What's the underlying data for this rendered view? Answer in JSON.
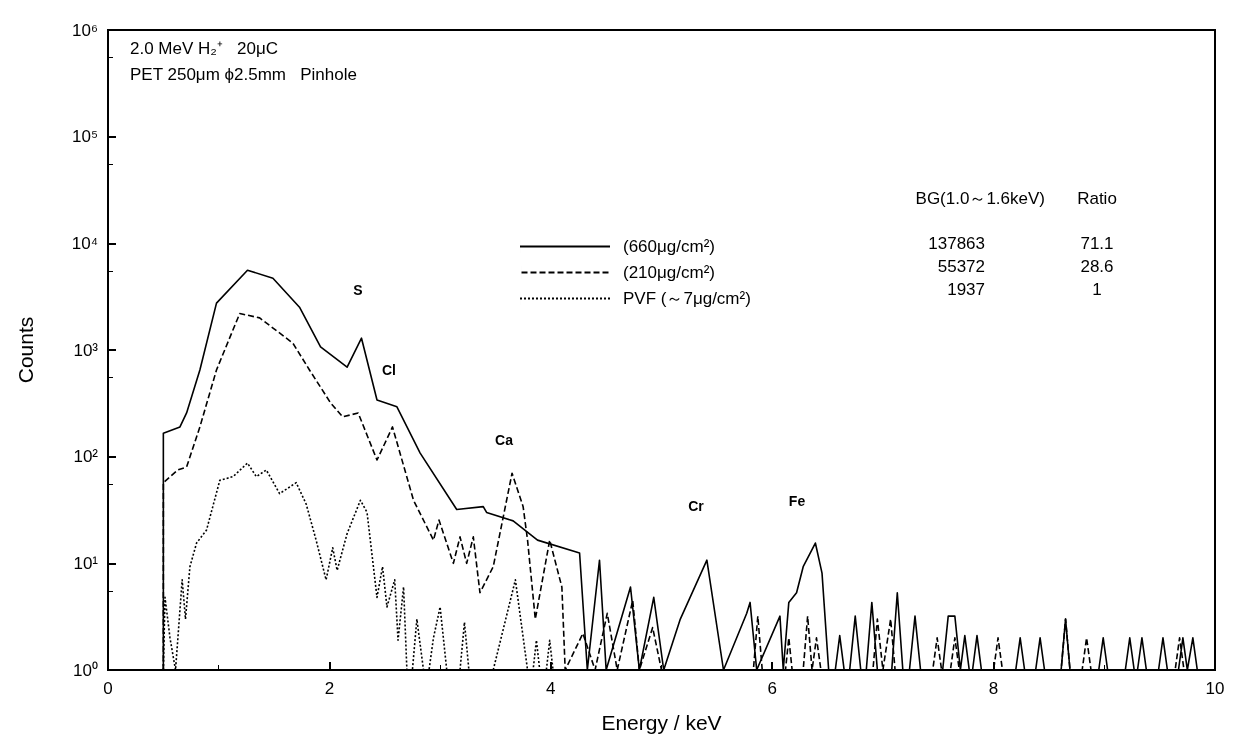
{
  "chart_data": {
    "type": "line",
    "xlabel": "Energy / keV",
    "ylabel": "Counts",
    "xlim": [
      0,
      10
    ],
    "xticks": [
      0,
      2,
      4,
      6,
      8,
      10
    ],
    "ylim": [
      1,
      1000000
    ],
    "log": "y",
    "yticks": [
      {
        "value": 1,
        "label": "10⁰"
      },
      {
        "value": 10,
        "label": "10¹"
      },
      {
        "value": 100,
        "label": "10²"
      },
      {
        "value": 1000,
        "label": "10³"
      },
      {
        "value": 10000,
        "label": "10⁴"
      },
      {
        "value": 100000,
        "label": "10⁵"
      },
      {
        "value": 1000000,
        "label": "10⁶"
      }
    ],
    "grid": false,
    "legend": "top right",
    "marker": "none",
    "annotations": [
      "2.0 MeV H₂⁺   20μC",
      "PET 250μm ϕ2.5mm   Pinhole",
      "BG(1.0～1.6keV)",
      "Ratio",
      "137863",
      "71.1",
      "55372",
      "28.6",
      "1937",
      "1",
      "S",
      "Cl",
      "Ca",
      "Cr",
      "Fe"
    ],
    "series": [
      {
        "name": "(660μg/cm²)",
        "color": "#000000",
        "line_style": "solid",
        "x": [
          0.5,
          0.5,
          0.65,
          0.71,
          0.83,
          0.98,
          1.26,
          1.49,
          1.73,
          1.92,
          2.16,
          2.29,
          2.43,
          2.61,
          2.82,
          3.15,
          3.39,
          3.42,
          3.66,
          3.88,
          4.26,
          4.33,
          4.44,
          4.5,
          4.72,
          4.8,
          4.93,
          5.02,
          5.17,
          5.41,
          5.56,
          5.77,
          5.8,
          5.86,
          6.07,
          6.1,
          6.15,
          6.22,
          6.28,
          6.39,
          6.45,
          6.51,
          6.57,
          6.61,
          6.65,
          6.7,
          6.75,
          6.8,
          6.85,
          6.9,
          6.95,
          7.08,
          7.13,
          7.18,
          7.24,
          7.29,
          7.34,
          7.54,
          7.59,
          7.65,
          7.7,
          7.74,
          7.78,
          7.81,
          7.85,
          7.89,
          8.2,
          8.24,
          8.28,
          8.38,
          8.42,
          8.46,
          8.61,
          8.65,
          8.69,
          8.95,
          8.99,
          9.03,
          9.19,
          9.23,
          9.27,
          9.3,
          9.34,
          9.38,
          9.49,
          9.53,
          9.57,
          9.67,
          9.71,
          9.75,
          9.8,
          9.84
        ],
        "values": [
          1,
          166,
          190,
          257,
          650,
          2750,
          5600,
          4700,
          2520,
          1070,
          690,
          1290,
          340,
          293,
          108,
          32,
          34,
          30,
          25,
          16.5,
          12.5,
          1,
          10.7,
          1,
          6,
          1,
          4.8,
          1,
          3,
          10.7,
          1,
          3.4,
          4.3,
          1,
          3.2,
          1,
          4.3,
          5.3,
          9.3,
          15.5,
          8.1,
          1,
          1,
          2.1,
          1,
          1,
          3.2,
          1,
          1,
          4.3,
          1,
          1,
          5.3,
          1,
          1,
          3.2,
          1,
          1,
          3.2,
          3.2,
          1,
          2.1,
          1,
          1,
          2.1,
          1,
          1,
          2,
          1,
          1,
          2,
          1,
          1,
          3,
          1,
          1,
          2,
          1,
          1,
          2,
          1,
          1,
          2,
          1,
          1,
          2,
          1,
          1,
          2,
          1,
          2,
          1
        ]
      },
      {
        "name": "(210μg/cm²)",
        "color": "#000000",
        "line_style": "dashed",
        "x": [
          0.5,
          0.5,
          0.63,
          0.71,
          0.83,
          0.98,
          1.19,
          1.37,
          1.67,
          1.82,
          2.01,
          2.12,
          2.26,
          2.43,
          2.57,
          2.76,
          2.94,
          2.99,
          3.12,
          3.18,
          3.24,
          3.3,
          3.36,
          3.48,
          3.65,
          3.75,
          3.79,
          3.86,
          3.99,
          4.1,
          4.13,
          4.29,
          4.4,
          4.51,
          4.6,
          4.74,
          4.8,
          4.92,
          5.0,
          5.83,
          5.87,
          5.91,
          6.12,
          6.15,
          6.18,
          6.28,
          6.32,
          6.36,
          6.4,
          6.44,
          6.91,
          6.95,
          7.0,
          7.07,
          7.11,
          7.45,
          7.49,
          7.53,
          7.61,
          7.65,
          7.69,
          8.0,
          8.04,
          8.08,
          8.61,
          8.65,
          8.69,
          8.8,
          8.84,
          8.88,
          9.64,
          9.68,
          9.72
        ],
        "values": [
          1,
          57,
          75,
          80,
          190,
          650,
          2200,
          2000,
          1160,
          650,
          320,
          236,
          257,
          93,
          190,
          39,
          16.5,
          25.5,
          10,
          17.7,
          10,
          17.7,
          5.3,
          9.3,
          70,
          34,
          16.5,
          3,
          16.5,
          6,
          1,
          2.2,
          1,
          3.4,
          1,
          4.5,
          1,
          2.5,
          1,
          1,
          3.2,
          1,
          1,
          2,
          1,
          1,
          3.2,
          1,
          2,
          1,
          1,
          3,
          1,
          3,
          1,
          1,
          2,
          1,
          1,
          2,
          1,
          1,
          2,
          1,
          1,
          3,
          1,
          1,
          2,
          1,
          1,
          2,
          1
        ]
      },
      {
        "name": "PVF (～7μg/cm²)",
        "color": "#000000",
        "line_style": "dotted",
        "x": [
          0.5,
          0.515,
          0.56,
          0.61,
          0.67,
          0.7,
          0.74,
          0.8,
          0.89,
          1.01,
          1.13,
          1.26,
          1.34,
          1.43,
          1.55,
          1.7,
          1.79,
          1.88,
          1.97,
          2.03,
          2.07,
          2.16,
          2.28,
          2.34,
          2.43,
          2.48,
          2.52,
          2.59,
          2.62,
          2.67,
          2.7,
          2.75,
          2.79,
          2.85,
          2.9,
          2.94,
          3.0,
          3.06,
          3.18,
          3.22,
          3.26,
          3.48,
          3.68,
          3.79,
          3.84,
          3.87,
          3.9,
          3.96,
          3.99,
          4.02
        ],
        "values": [
          1,
          4.8,
          2,
          1,
          7,
          3,
          9.3,
          15.5,
          20.5,
          60,
          65,
          87,
          65,
          75,
          45,
          57,
          36,
          16.5,
          7,
          14,
          8.6,
          19,
          39,
          30,
          4.8,
          9.3,
          3.9,
          7,
          1.9,
          6,
          1,
          1,
          3,
          1,
          1,
          2,
          3.9,
          1,
          1,
          2.8,
          1,
          1,
          7,
          1,
          1,
          1.9,
          1,
          1,
          1.9,
          1
        ]
      }
    ]
  }
}
